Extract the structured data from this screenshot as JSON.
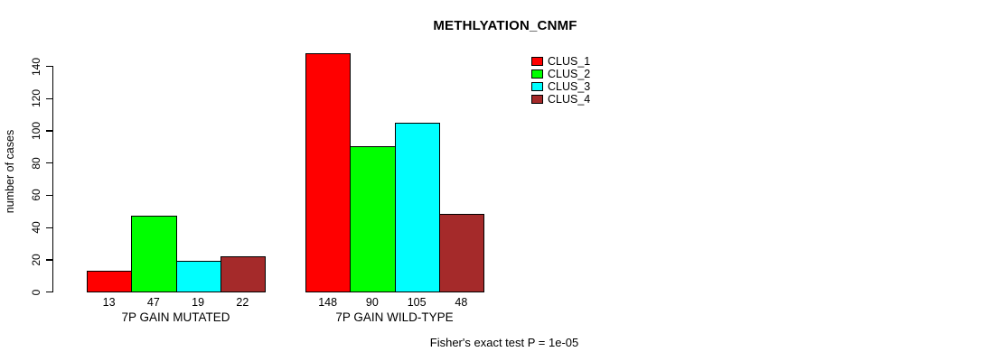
{
  "title": "METHLYATION_CNMF",
  "chart_data": {
    "type": "bar",
    "title": "METHLYATION_CNMF",
    "xlabel": "",
    "ylabel": "number of cases",
    "categories": [
      "7P GAIN MUTATED",
      "7P GAIN WILD-TYPE"
    ],
    "series": [
      {
        "name": "CLUS_1",
        "color": "#FF0000",
        "values": [
          13,
          148
        ]
      },
      {
        "name": "CLUS_2",
        "color": "#00FF00",
        "values": [
          47,
          90
        ]
      },
      {
        "name": "CLUS_3",
        "color": "#00FFFF",
        "values": [
          19,
          105
        ]
      },
      {
        "name": "CLUS_4",
        "color": "#A52A2A",
        "values": [
          22,
          48
        ]
      }
    ],
    "yticks": [
      0,
      20,
      40,
      60,
      80,
      100,
      120,
      140
    ],
    "ylim": [
      0,
      140
    ],
    "bar_value_labels": true,
    "grid": false,
    "legend_position": "top-right",
    "annotation": "Fisher's exact test P = 1e-05"
  }
}
